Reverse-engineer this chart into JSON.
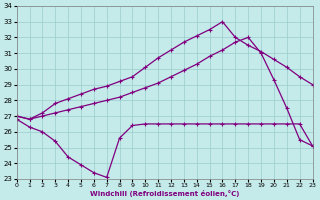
{
  "xlabel": "Windchill (Refroidissement éolien,°C)",
  "background_color": "#c5eaea",
  "line_color": "#800080",
  "grid_color": "#99cccc",
  "xlim": [
    0,
    23
  ],
  "ylim": [
    23,
    34
  ],
  "xticks": [
    0,
    1,
    2,
    3,
    4,
    5,
    6,
    7,
    8,
    9,
    10,
    11,
    12,
    13,
    14,
    15,
    16,
    17,
    18,
    19,
    20,
    21,
    22,
    23
  ],
  "yticks": [
    23,
    24,
    25,
    26,
    27,
    28,
    29,
    30,
    31,
    32,
    33,
    34
  ],
  "line1_x": [
    0,
    1,
    2,
    3,
    4,
    5,
    6,
    7,
    8,
    9,
    10,
    11,
    12,
    13,
    14,
    15,
    16,
    17,
    18,
    19,
    20,
    21,
    22,
    23
  ],
  "line1_y": [
    27.0,
    26.8,
    27.2,
    27.8,
    28.1,
    28.4,
    28.7,
    28.9,
    29.2,
    29.5,
    30.1,
    30.7,
    31.2,
    31.7,
    32.1,
    32.5,
    33.0,
    32.0,
    31.5,
    31.1,
    30.6,
    30.1,
    29.5,
    29.0
  ],
  "line2_x": [
    0,
    1,
    2,
    3,
    4,
    5,
    6,
    7,
    8,
    9,
    10,
    11,
    12,
    13,
    14,
    15,
    16,
    17,
    18,
    19,
    20,
    21,
    22,
    23
  ],
  "line2_y": [
    27.0,
    26.8,
    27.0,
    27.2,
    27.4,
    27.6,
    27.8,
    28.0,
    28.2,
    28.5,
    28.8,
    29.1,
    29.5,
    29.9,
    30.3,
    30.8,
    31.2,
    31.7,
    32.0,
    31.0,
    29.3,
    27.5,
    25.5,
    25.1
  ],
  "line3_x": [
    0,
    1,
    2,
    3,
    4,
    5,
    6,
    7,
    8,
    9,
    10,
    11,
    12,
    13,
    14,
    15,
    16,
    17,
    18,
    19,
    20,
    21,
    22,
    23
  ],
  "line3_y": [
    26.8,
    26.3,
    26.0,
    25.4,
    24.4,
    23.9,
    23.4,
    23.1,
    25.6,
    26.4,
    26.5,
    26.5,
    26.5,
    26.5,
    26.5,
    26.5,
    26.5,
    26.5,
    26.5,
    26.5,
    26.5,
    26.5,
    26.5,
    25.1
  ]
}
